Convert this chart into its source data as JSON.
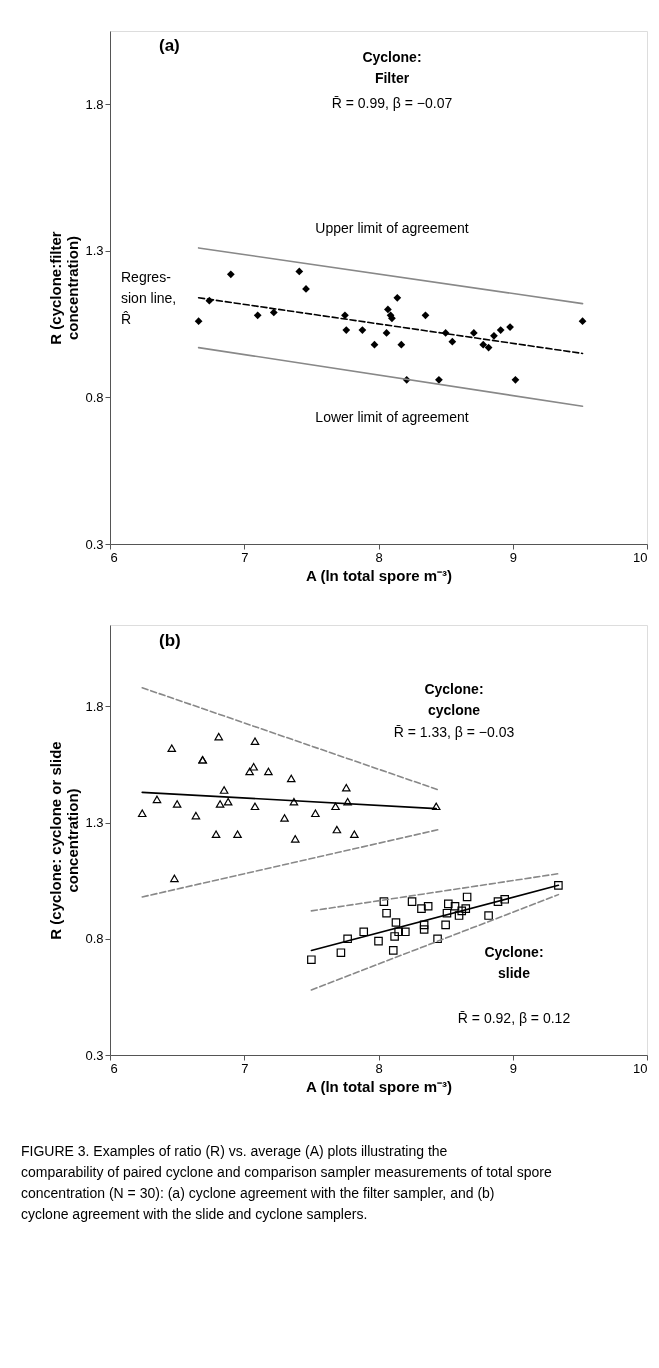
{
  "chart_data": [
    {
      "type": "scatter",
      "xlabel": "A (ln total spore m⁻³)",
      "ylabel": "R (cyclone:filter concentration)",
      "xlim": [
        6,
        10
      ],
      "xticks": [
        6,
        7,
        8,
        9,
        10
      ],
      "ylim": [
        0.3,
        2.05
      ],
      "yticks": [
        0.3,
        0.8,
        1.3,
        1.8
      ],
      "grid": false,
      "annotations": [
        "(a)",
        "Cyclone:\nFilter",
        "R̄ = 0.99, β = −0.07",
        "Upper limit of agreement",
        "Lower limit of agreement",
        "Regres-\nsion line,\nR̂"
      ],
      "series": [
        {
          "type": "scatter",
          "marker": "diamond",
          "color": "#000000",
          "x": [
            6.66,
            6.74,
            6.9,
            7.1,
            7.22,
            7.41,
            7.46,
            7.75,
            7.76,
            7.88,
            7.97,
            8.06,
            8.07,
            8.09,
            8.1,
            8.14,
            8.17,
            8.21,
            8.35,
            8.45,
            8.5,
            8.55,
            8.71,
            8.78,
            8.82,
            8.86,
            8.91,
            8.98,
            9.02,
            9.52
          ],
          "values": [
            1.06,
            1.13,
            1.22,
            1.08,
            1.09,
            1.23,
            1.17,
            1.08,
            1.03,
            1.03,
            0.98,
            1.02,
            1.1,
            1.08,
            1.07,
            1.14,
            0.98,
            0.86,
            1.08,
            0.86,
            1.02,
            0.99,
            1.02,
            0.98,
            0.97,
            1.01,
            1.03,
            1.04,
            0.86,
            1.06
          ]
        },
        {
          "type": "line",
          "line_style": "dashed",
          "color": "#000000",
          "x": [
            6.66,
            9.52
          ],
          "values": [
            1.14,
            0.95
          ]
        },
        {
          "type": "line",
          "line_style": "solid",
          "color": "#888888",
          "x": [
            6.66,
            9.52
          ],
          "values": [
            1.31,
            1.12
          ]
        },
        {
          "type": "line",
          "line_style": "solid",
          "color": "#888888",
          "x": [
            6.66,
            9.52
          ],
          "values": [
            0.97,
            0.77
          ]
        }
      ]
    },
    {
      "type": "scatter",
      "xlabel": "A (ln total spore m⁻³)",
      "ylabel": "R (cyclone: cyclone or slide concentration)",
      "xlim": [
        6,
        10
      ],
      "xticks": [
        6,
        7,
        8,
        9,
        10
      ],
      "ylim": [
        0.3,
        2.15
      ],
      "yticks": [
        0.3,
        0.8,
        1.3,
        1.8
      ],
      "grid": false,
      "annotations": [
        "(b)",
        "Cyclone:\ncyclone",
        "R̄ = 1.33, β = −0.03",
        "Cyclone:\nslide",
        "R̄ = 0.92, β = 0.12",
        "FIGURE 3. Examples of ratio (R) vs. average (A) plots illustrating the comparability of paired cyclone and comparison sampler measurements of total spore concentration (N = 30): (a) cyclone agreement with the filter sampler, and (b) cyclone agreement with the slide and cyclone samplers."
      ],
      "series": [
        {
          "type": "scatter",
          "marker": "triangle",
          "color": "#000000",
          "x": [
            6.24,
            6.35,
            6.46,
            6.48,
            6.5,
            6.64,
            6.69,
            6.69,
            6.79,
            6.81,
            6.82,
            6.85,
            6.88,
            6.95,
            7.04,
            7.07,
            7.08,
            7.08,
            7.18,
            7.3,
            7.35,
            7.37,
            7.38,
            7.53,
            7.68,
            7.69,
            7.76,
            7.77,
            7.82,
            8.43
          ],
          "values": [
            1.34,
            1.4,
            1.62,
            1.06,
            1.38,
            1.33,
            1.57,
            1.57,
            1.25,
            1.67,
            1.38,
            1.44,
            1.39,
            1.25,
            1.52,
            1.54,
            1.65,
            1.37,
            1.52,
            1.32,
            1.49,
            1.39,
            1.23,
            1.34,
            1.37,
            1.27,
            1.45,
            1.39,
            1.25,
            1.37
          ]
        },
        {
          "type": "line",
          "line_style": "solid",
          "color": "#000000",
          "x": [
            6.24,
            8.43
          ],
          "values": [
            1.43,
            1.36
          ]
        },
        {
          "type": "line",
          "line_style": "dashed",
          "color": "#888888",
          "x": [
            6.24,
            8.45
          ],
          "values": [
            1.88,
            1.44
          ]
        },
        {
          "type": "line",
          "line_style": "dashed",
          "color": "#888888",
          "x": [
            6.24,
            8.45
          ],
          "values": [
            0.98,
            1.27
          ]
        },
        {
          "type": "scatter",
          "marker": "square",
          "color": "#000000",
          "x": [
            7.5,
            7.72,
            7.77,
            7.89,
            8.0,
            8.04,
            8.06,
            8.11,
            8.12,
            8.13,
            8.15,
            8.2,
            8.25,
            8.32,
            8.34,
            8.34,
            8.37,
            8.44,
            8.5,
            8.52,
            8.51,
            8.57,
            8.6,
            8.62,
            8.65,
            8.66,
            8.82,
            8.89,
            8.94,
            9.34
          ],
          "values": [
            0.71,
            0.74,
            0.8,
            0.83,
            0.79,
            0.96,
            0.91,
            0.75,
            0.81,
            0.87,
            0.83,
            0.83,
            0.96,
            0.93,
            0.86,
            0.84,
            0.94,
            0.8,
            0.86,
            0.95,
            0.91,
            0.94,
            0.9,
            0.92,
            0.93,
            0.98,
            0.9,
            0.96,
            0.97,
            1.03
          ]
        },
        {
          "type": "line",
          "line_style": "solid",
          "color": "#000000",
          "x": [
            7.5,
            9.34
          ],
          "values": [
            0.75,
            1.03
          ]
        },
        {
          "type": "line",
          "line_style": "dashed",
          "color": "#888888",
          "x": [
            7.5,
            9.34
          ],
          "values": [
            0.92,
            1.08
          ]
        },
        {
          "type": "line",
          "line_style": "dashed",
          "color": "#888888",
          "x": [
            7.5,
            9.34
          ],
          "values": [
            0.58,
            0.99
          ]
        }
      ]
    }
  ]
}
